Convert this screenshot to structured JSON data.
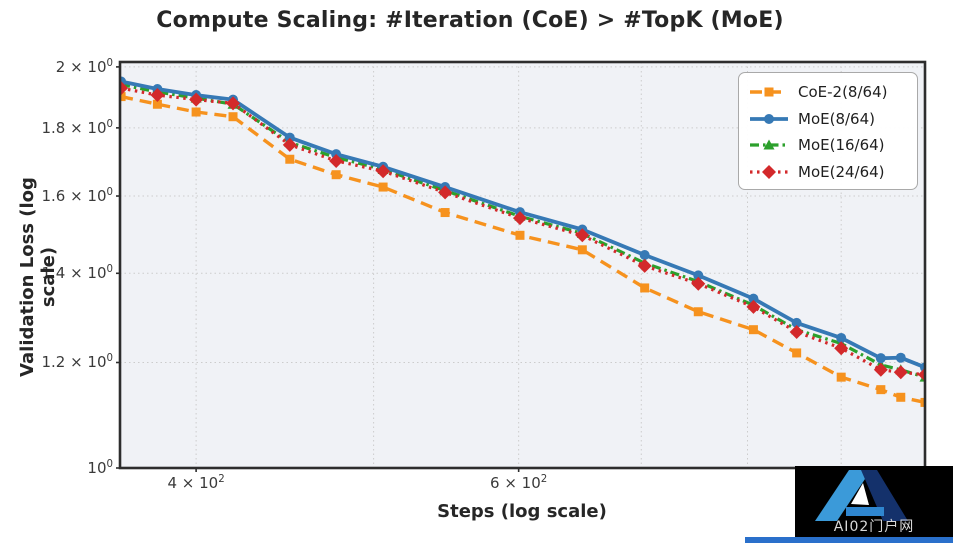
{
  "title": "Compute Scaling: #Iteration (CoE) > #TopK (MoE)",
  "watermark": {
    "text": "AI02门户网",
    "logo": "blue-a-logo",
    "bar_color": "#2a70cb"
  },
  "chart_data": {
    "type": "line",
    "title": "Compute Scaling: #Iteration (CoE) > #TopK (MoE)",
    "xlabel": "Steps (log scale)",
    "ylabel": "Validation Loss (log scale)",
    "xscale": "log",
    "yscale": "log",
    "xlim": [
      363.5,
      1000
    ],
    "ylim": [
      1.0,
      2.017
    ],
    "grid": true,
    "legend_position": "upper right",
    "background": "#f0f2f6",
    "grid_color": "#cccccc",
    "spine_color": "#2d2d2d",
    "xgrid_values": [
      400,
      500,
      600,
      700,
      800,
      900
    ],
    "xticks": [
      {
        "value": 400,
        "base": "4 × 10",
        "exp": "2"
      },
      {
        "value": 600,
        "base": "6 × 10",
        "exp": "2"
      }
    ],
    "yticks": [
      {
        "value": 2.0,
        "base": "2 × 10",
        "exp": "0"
      },
      {
        "value": 1.8,
        "base": "1.8 × 10",
        "exp": "0"
      },
      {
        "value": 1.6,
        "base": "1.6 × 10",
        "exp": "0"
      },
      {
        "value": 1.4,
        "base": "1.4 × 10",
        "exp": "0"
      },
      {
        "value": 1.2,
        "base": "1.2 × 10",
        "exp": "0"
      },
      {
        "value": 1.0,
        "base": "10",
        "exp": "0"
      }
    ],
    "x": [
      364,
      381,
      400,
      419,
      450,
      477,
      506,
      547,
      601,
      650,
      703,
      752,
      806,
      851,
      900,
      946,
      970,
      1000
    ],
    "series": [
      {
        "name": "CoE-2(8/64)",
        "color": "#f6921e",
        "linestyle": "dashed",
        "dash": "12 7",
        "lw": 3.4,
        "marker": "square",
        "values": [
          1.9,
          1.875,
          1.85,
          1.835,
          1.705,
          1.66,
          1.625,
          1.555,
          1.495,
          1.458,
          1.365,
          1.31,
          1.27,
          1.22,
          1.17,
          1.145,
          1.13,
          1.12
        ]
      },
      {
        "name": "MoE(8/64)",
        "color": "#3679b5",
        "linestyle": "solid",
        "dash": "",
        "lw": 3.8,
        "marker": "circle",
        "values": [
          1.95,
          1.925,
          1.905,
          1.89,
          1.77,
          1.72,
          1.683,
          1.625,
          1.556,
          1.51,
          1.445,
          1.395,
          1.34,
          1.285,
          1.252,
          1.209,
          1.21,
          1.19
        ]
      },
      {
        "name": "MoE(16/64)",
        "color": "#2ca02c",
        "linestyle": "dashdot",
        "dash": "9 4 2.5 4",
        "lw": 3.2,
        "marker": "triangle",
        "values": [
          1.94,
          1.915,
          1.895,
          1.875,
          1.755,
          1.71,
          1.675,
          1.615,
          1.545,
          1.5,
          1.425,
          1.38,
          1.325,
          1.27,
          1.24,
          1.195,
          1.185,
          1.17
        ]
      },
      {
        "name": "MoE(24/64)",
        "color": "#d3292b",
        "linestyle": "dotted",
        "dash": "2.5 4.5",
        "lw": 3.2,
        "marker": "diamond",
        "values": [
          1.928,
          1.905,
          1.89,
          1.878,
          1.748,
          1.7,
          1.67,
          1.61,
          1.54,
          1.495,
          1.418,
          1.375,
          1.321,
          1.265,
          1.23,
          1.185,
          1.18,
          1.175
        ]
      }
    ]
  }
}
